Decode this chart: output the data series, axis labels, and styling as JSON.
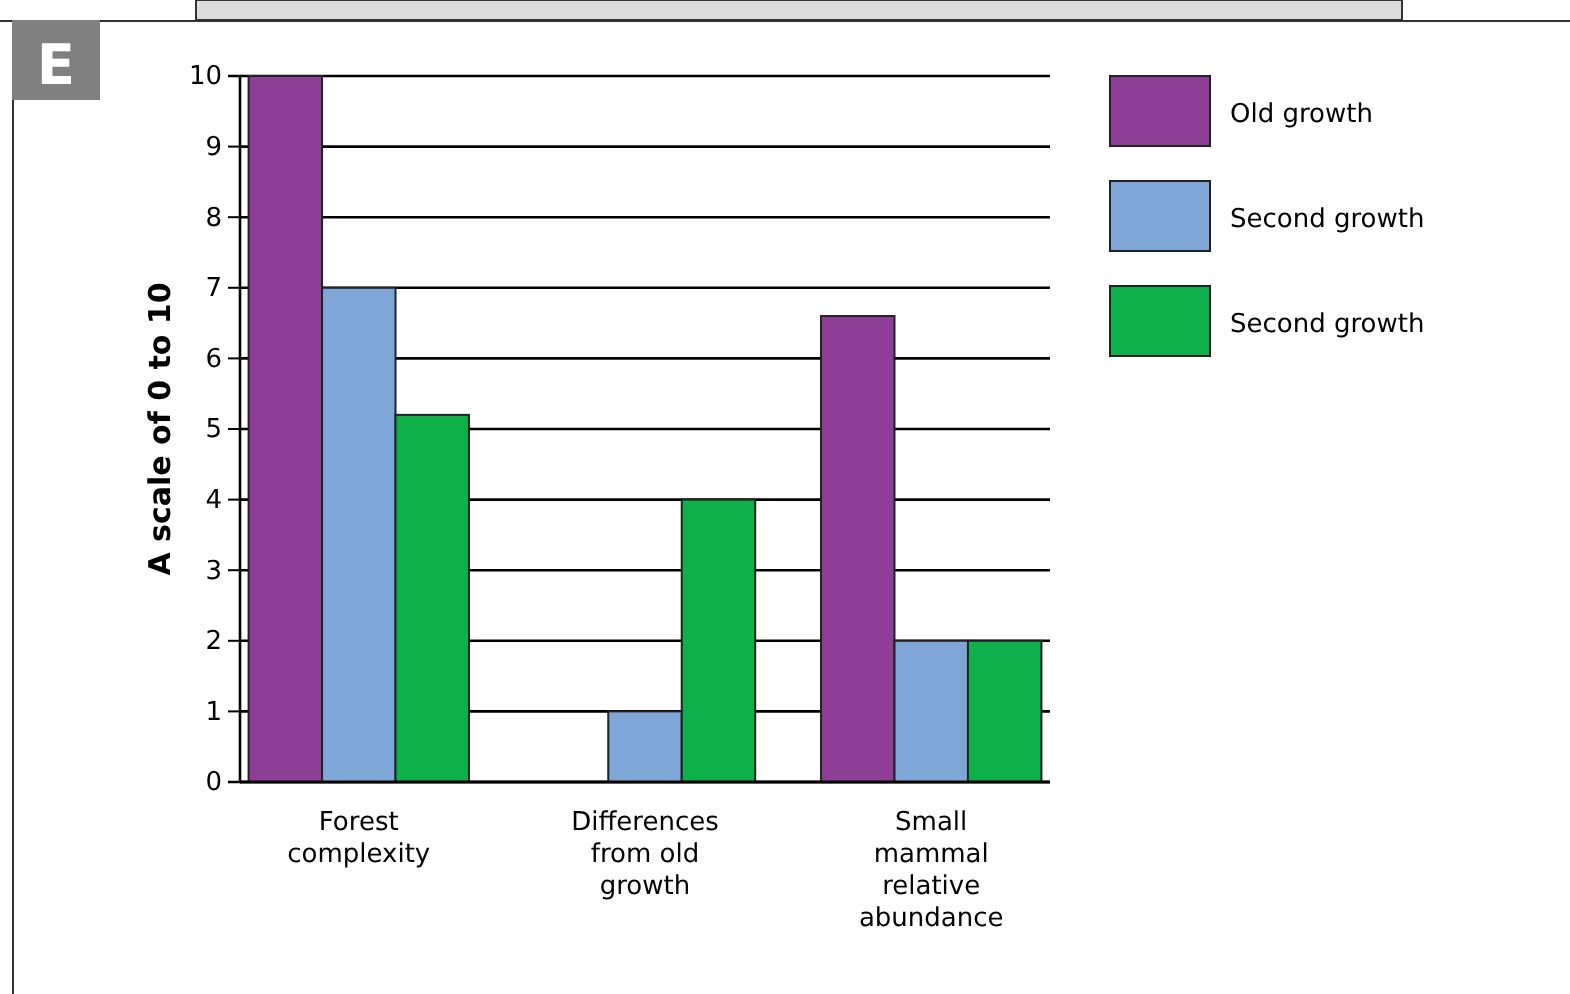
{
  "chart_data": {
    "type": "bar",
    "categories": [
      "Forest complexity",
      "Differences from old growth",
      "Small mammal relative abundance"
    ],
    "series": [
      {
        "name": "Old growth",
        "color": "#8e3e96",
        "values": [
          10,
          0,
          6.6
        ]
      },
      {
        "name": "Second growth",
        "color": "#7ea7d8",
        "values": [
          7,
          1,
          2
        ]
      },
      {
        "name": "Second growth",
        "color": "#0db04b",
        "values": [
          5.2,
          4,
          2
        ]
      }
    ],
    "ylabel": "A scale of 0 to 10",
    "ylim": [
      0,
      10
    ],
    "yticks": [
      0,
      1,
      2,
      3,
      4,
      5,
      6,
      7,
      8,
      9,
      10
    ],
    "grid": "y",
    "legend": "right",
    "annotations": [
      "E"
    ]
  }
}
